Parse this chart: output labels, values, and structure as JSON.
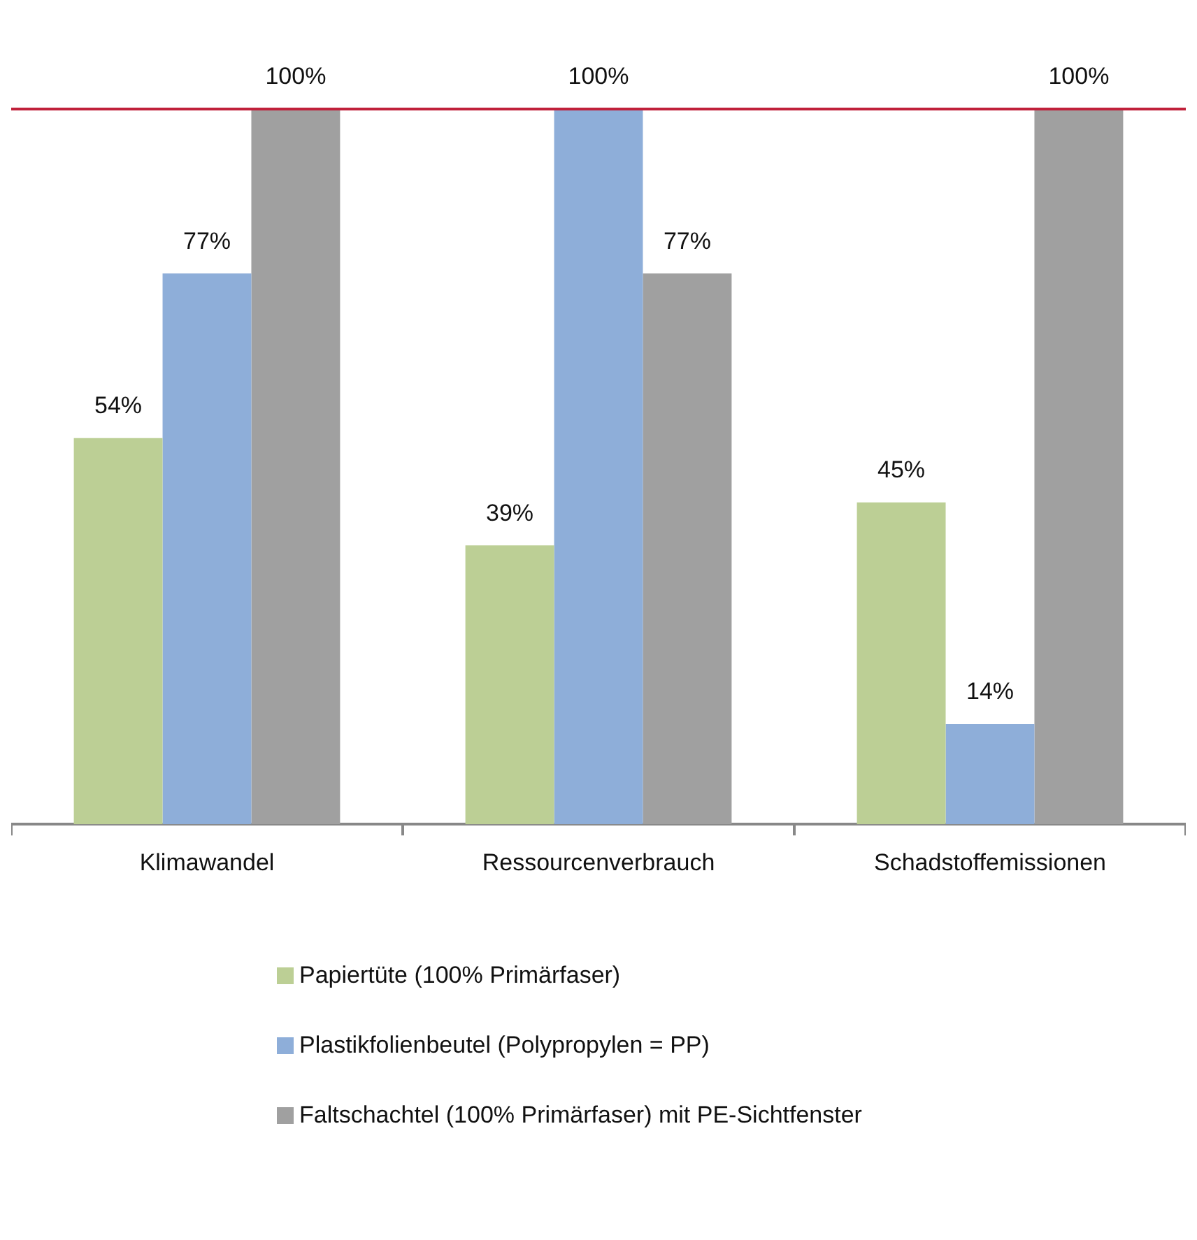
{
  "chart_data": {
    "type": "bar",
    "categories": [
      "Klimawandel",
      "Ressourcenverbrauch",
      "Schadstoffemissionen"
    ],
    "series": [
      {
        "name": "Papiertüte (100% Primärfaser)",
        "color": "#bccf95",
        "values": [
          54,
          39,
          45
        ],
        "value_labels": [
          "54%",
          "39%",
          "45%"
        ]
      },
      {
        "name": "Plastikfolienbeutel (Polypropylen = PP)",
        "color": "#8eaed9",
        "values": [
          77,
          100,
          14
        ],
        "value_labels": [
          "77%",
          "100%",
          "14%"
        ]
      },
      {
        "name": "Faltschachtel (100% Primärfaser) mit PE-Sichtfenster",
        "color": "#a0a0a0",
        "values": [
          100,
          77,
          100
        ],
        "value_labels": [
          "100%",
          "77%",
          "100%"
        ]
      }
    ],
    "ylim": [
      0,
      100
    ],
    "tick_labels": "x",
    "grid": false,
    "legend": "bottom",
    "ref_lines": [
      {
        "axis": "y",
        "value": 100,
        "color": "#c0203a"
      }
    ]
  }
}
